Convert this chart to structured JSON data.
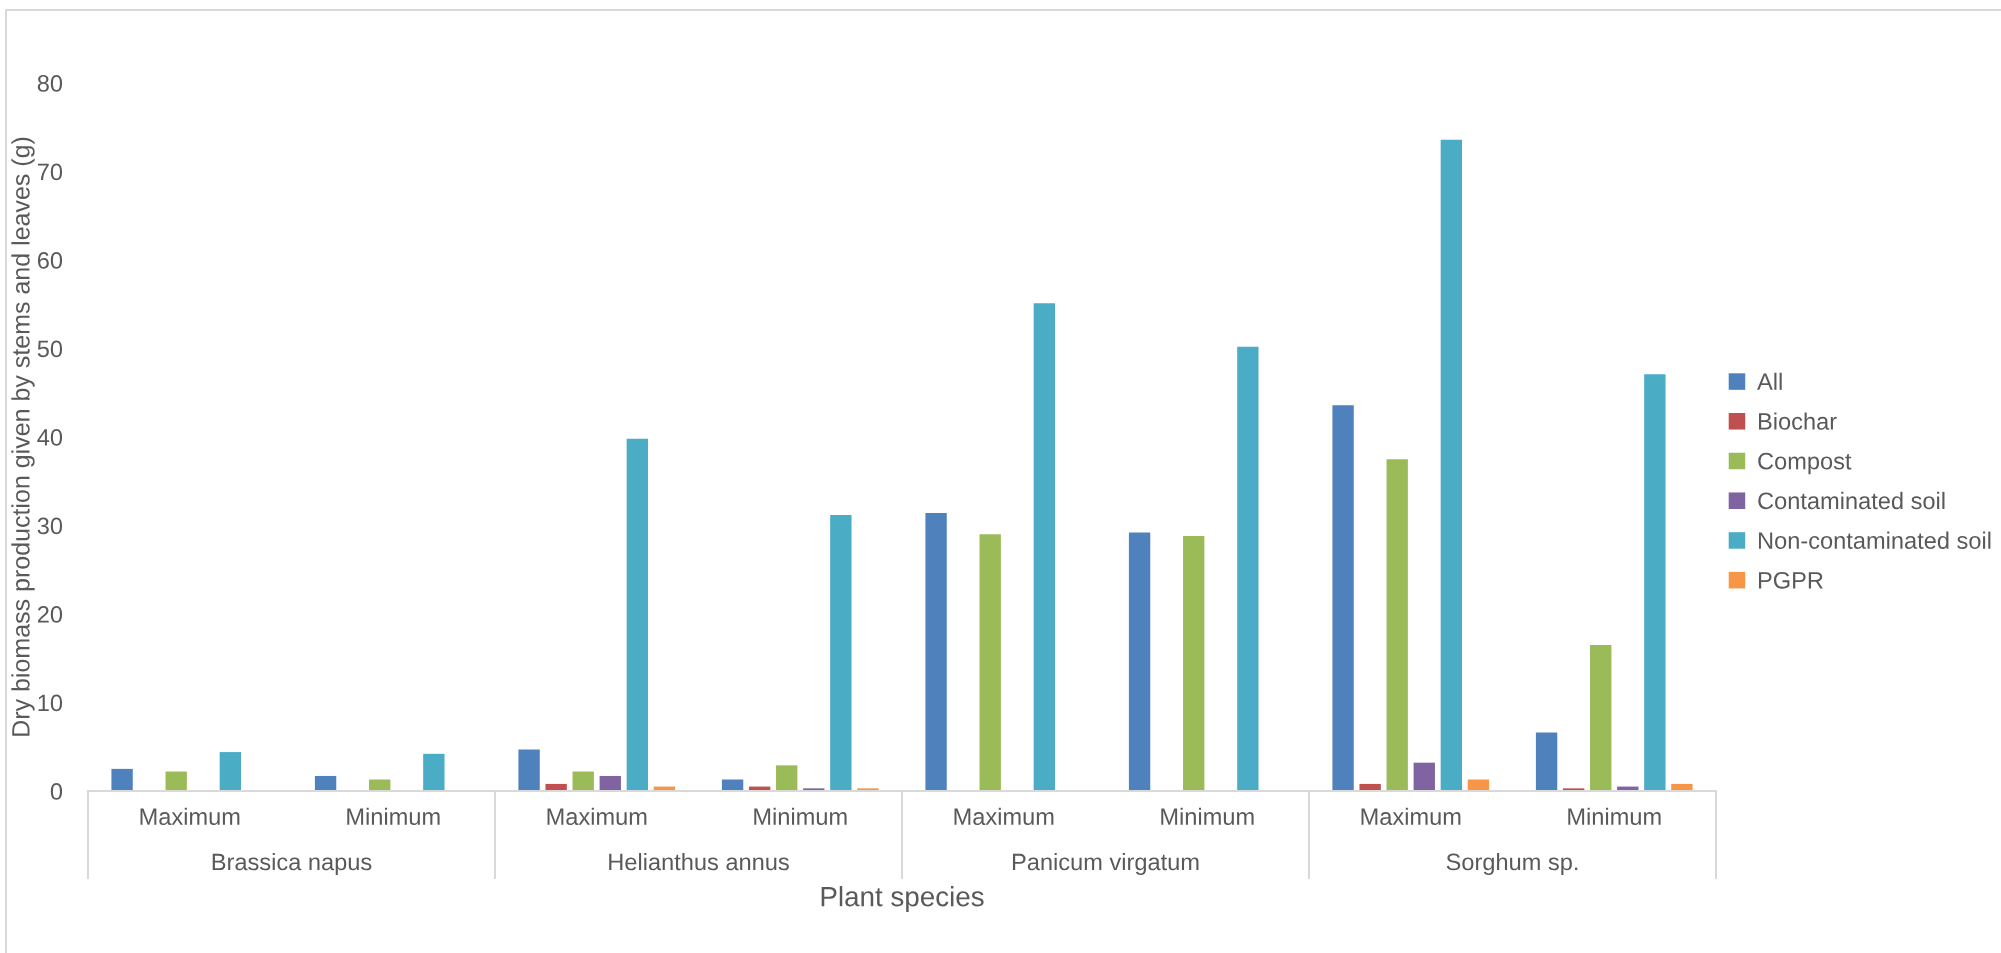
{
  "chart_data": {
    "type": "bar",
    "xlabel": "Plant species",
    "ylabel": "Dry biomass production given by stems and leaves (g)",
    "categories": [
      "Maximum",
      "Minimum",
      "Maximum",
      "Minimum",
      "Maximum",
      "Minimum",
      "Maximum",
      "Minimum"
    ],
    "annotations": [
      "Brassica napus",
      "Helianthus annus",
      "Panicum virgatum",
      "Sorghum sp."
    ],
    "series": [
      {
        "name": "All",
        "color": "#4f81bd",
        "values": [
          2.5,
          1.7,
          4.7,
          1.3,
          31.4,
          29.2,
          43.6,
          6.6
        ]
      },
      {
        "name": "Biochar",
        "color": "#c0504d",
        "values": [
          null,
          null,
          0.8,
          0.5,
          null,
          null,
          0.8,
          0.3
        ]
      },
      {
        "name": "Compost",
        "color": "#9bbb59",
        "values": [
          2.2,
          1.3,
          2.2,
          2.9,
          29.0,
          28.8,
          37.5,
          16.5
        ]
      },
      {
        "name": "Contaminated soil",
        "color": "#8064a2",
        "values": [
          null,
          null,
          1.7,
          0.3,
          null,
          null,
          3.2,
          0.5
        ]
      },
      {
        "name": "Non-contaminated soil",
        "color": "#4bacc6",
        "values": [
          4.4,
          4.2,
          39.8,
          31.2,
          55.1,
          50.2,
          73.6,
          47.1
        ]
      },
      {
        "name": "PGPR",
        "color": "#f79646",
        "values": [
          null,
          null,
          0.5,
          0.3,
          null,
          null,
          1.3,
          0.8
        ]
      }
    ],
    "ylim": [
      0,
      80
    ],
    "yticks": [
      0,
      10,
      20,
      30,
      40,
      50,
      60,
      70,
      80
    ],
    "legend": "right"
  }
}
